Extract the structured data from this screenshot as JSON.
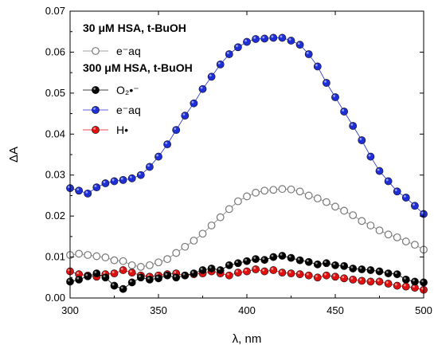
{
  "chart_data": {
    "type": "scatter",
    "xlabel": "λ, nm",
    "ylabel": "ΔA",
    "xlim": [
      300,
      500
    ],
    "ylim": [
      0.0,
      0.07
    ],
    "xticks": [
      300,
      350,
      400,
      450,
      500
    ],
    "yticks": [
      0.0,
      0.01,
      0.02,
      0.03,
      0.04,
      0.05,
      0.06,
      0.07
    ],
    "ytick_labels": [
      "0.00",
      "0.01",
      "0.02",
      "0.03",
      "0.04",
      "0.05",
      "0.06",
      "0.07"
    ],
    "grid": false,
    "legend_position": "top-left",
    "legend": {
      "group1_title": "30 μM HSA, t-BuOH",
      "group2_title": "300 μM HSA, t-BuOH"
    },
    "series": [
      {
        "name": "e⁻aq",
        "group": 1,
        "marker": "open-circle",
        "color": "#808080",
        "x": [
          300,
          305,
          310,
          315,
          320,
          325,
          330,
          335,
          340,
          345,
          350,
          355,
          360,
          365,
          370,
          375,
          380,
          385,
          390,
          395,
          400,
          405,
          410,
          415,
          420,
          425,
          430,
          435,
          440,
          445,
          450,
          455,
          460,
          465,
          470,
          475,
          480,
          485,
          490,
          495,
          500
        ],
        "y": [
          0.0105,
          0.0108,
          0.0105,
          0.0102,
          0.0099,
          0.0092,
          0.009,
          0.008,
          0.0076,
          0.008,
          0.0087,
          0.0095,
          0.011,
          0.0125,
          0.014,
          0.0157,
          0.0177,
          0.0197,
          0.0217,
          0.0236,
          0.0248,
          0.0257,
          0.0262,
          0.0264,
          0.0266,
          0.0265,
          0.026,
          0.025,
          0.0243,
          0.0234,
          0.0223,
          0.0213,
          0.0202,
          0.0188,
          0.0177,
          0.0165,
          0.0155,
          0.0148,
          0.0138,
          0.013,
          0.0118
        ]
      },
      {
        "name": "O₂•⁻",
        "group": 2,
        "marker": "filled-circle",
        "color": "#000000",
        "x": [
          300,
          305,
          310,
          315,
          320,
          325,
          330,
          335,
          340,
          345,
          350,
          355,
          360,
          365,
          370,
          375,
          380,
          385,
          390,
          395,
          400,
          405,
          410,
          415,
          420,
          425,
          430,
          435,
          440,
          445,
          450,
          455,
          460,
          465,
          470,
          475,
          480,
          485,
          490,
          495,
          500
        ],
        "y": [
          0.004,
          0.0045,
          0.0053,
          0.006,
          0.005,
          0.003,
          0.0022,
          0.0038,
          0.005,
          0.0045,
          0.0048,
          0.0055,
          0.005,
          0.0055,
          0.006,
          0.0068,
          0.0072,
          0.0068,
          0.008,
          0.0085,
          0.009,
          0.0095,
          0.0093,
          0.01,
          0.0103,
          0.0098,
          0.0092,
          0.0088,
          0.0082,
          0.0085,
          0.008,
          0.0078,
          0.0072,
          0.007,
          0.0068,
          0.0065,
          0.006,
          0.0058,
          0.0045,
          0.004,
          0.0038
        ]
      },
      {
        "name": "e⁻aq",
        "group": 2,
        "marker": "filled-circle",
        "color": "#1f2fd8",
        "x": [
          300,
          305,
          310,
          315,
          320,
          325,
          330,
          335,
          340,
          345,
          350,
          355,
          360,
          365,
          370,
          375,
          380,
          385,
          390,
          395,
          400,
          405,
          410,
          415,
          420,
          425,
          430,
          435,
          440,
          445,
          450,
          455,
          460,
          465,
          470,
          475,
          480,
          485,
          490,
          495,
          500
        ],
        "y": [
          0.0268,
          0.0262,
          0.0255,
          0.027,
          0.028,
          0.0285,
          0.0288,
          0.0292,
          0.03,
          0.032,
          0.0345,
          0.0375,
          0.041,
          0.0445,
          0.0475,
          0.051,
          0.054,
          0.057,
          0.0595,
          0.0612,
          0.0625,
          0.0632,
          0.0633,
          0.0635,
          0.0635,
          0.0628,
          0.0618,
          0.0595,
          0.0565,
          0.0525,
          0.049,
          0.0455,
          0.042,
          0.0385,
          0.0345,
          0.031,
          0.0285,
          0.026,
          0.0245,
          0.0225,
          0.0205
        ]
      },
      {
        "name": "H•",
        "group": 2,
        "marker": "filled-circle",
        "color": "#e01010",
        "x": [
          300,
          305,
          310,
          315,
          320,
          325,
          330,
          335,
          340,
          345,
          350,
          355,
          360,
          365,
          370,
          375,
          380,
          385,
          390,
          395,
          400,
          405,
          410,
          415,
          420,
          425,
          430,
          435,
          440,
          445,
          450,
          455,
          460,
          465,
          470,
          475,
          480,
          485,
          490,
          495,
          500
        ],
        "y": [
          0.0065,
          0.0058,
          0.0055,
          0.0052,
          0.0058,
          0.006,
          0.0068,
          0.0062,
          0.0055,
          0.0052,
          0.0055,
          0.0058,
          0.006,
          0.0055,
          0.0058,
          0.006,
          0.0065,
          0.006,
          0.0055,
          0.0062,
          0.0065,
          0.007,
          0.0065,
          0.0068,
          0.0062,
          0.006,
          0.0058,
          0.0055,
          0.005,
          0.0055,
          0.0052,
          0.0048,
          0.0045,
          0.0042,
          0.004,
          0.004,
          0.0035,
          0.003,
          0.0028,
          0.0025,
          0.002
        ]
      }
    ]
  }
}
